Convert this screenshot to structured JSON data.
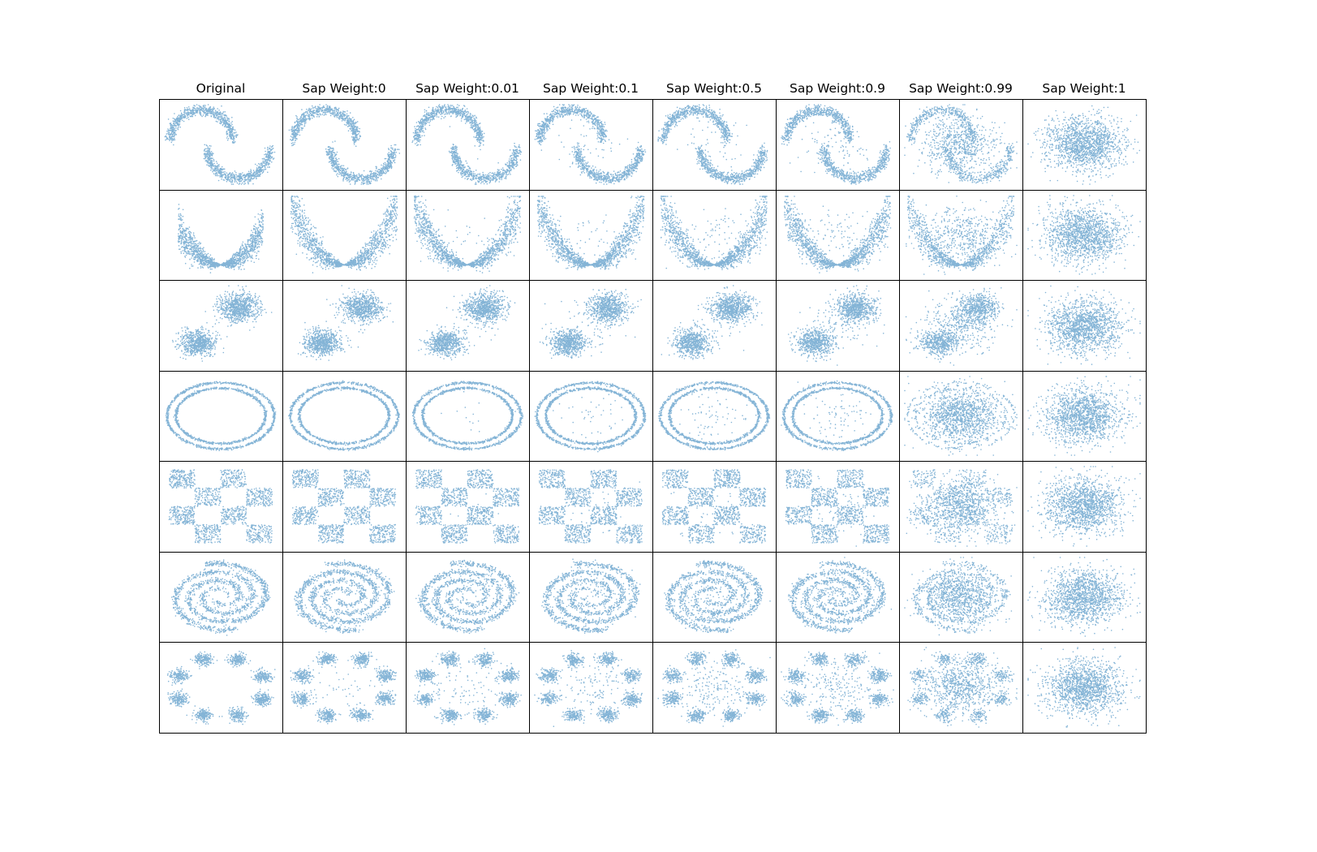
{
  "chart_data": {
    "type": "scatter",
    "layout": "small-multiples",
    "grid": false,
    "axes_ticks": false,
    "marker_color": "#1f77b4",
    "marker": "small-dot",
    "column_titles": [
      "Original",
      "Sap Weight:0",
      "Sap Weight:0.01",
      "Sap Weight:0.1",
      "Sap Weight:0.5",
      "Sap Weight:0.9",
      "Sap Weight:0.99",
      "Sap Weight:1"
    ],
    "sap_weights": [
      null,
      0,
      0.01,
      0.1,
      0.5,
      0.9,
      0.99,
      1
    ],
    "row_datasets": [
      "two-moons",
      "parabola",
      "two-gaussian-blobs",
      "concentric-circles",
      "checkerboard",
      "spirals",
      "eight-gaussians-ring"
    ],
    "points_per_panel": 1500,
    "cell_mix": [
      [
        0,
        0,
        0.01,
        0.03,
        0.03,
        0.07,
        0.45,
        1
      ],
      [
        0,
        0,
        0.02,
        0.03,
        0.04,
        0.05,
        0.3,
        1
      ],
      [
        0,
        0,
        0.01,
        0.03,
        0.03,
        0.05,
        0.3,
        1
      ],
      [
        0,
        0,
        0.01,
        0.03,
        0.04,
        0.05,
        0.85,
        1
      ],
      [
        0,
        0,
        0.01,
        0.03,
        0.03,
        0.06,
        0.6,
        1
      ],
      [
        0,
        0,
        0.02,
        0.03,
        0.05,
        0.08,
        0.55,
        1
      ],
      [
        0,
        0.03,
        0.06,
        0.08,
        0.12,
        0.15,
        0.55,
        1
      ]
    ]
  }
}
